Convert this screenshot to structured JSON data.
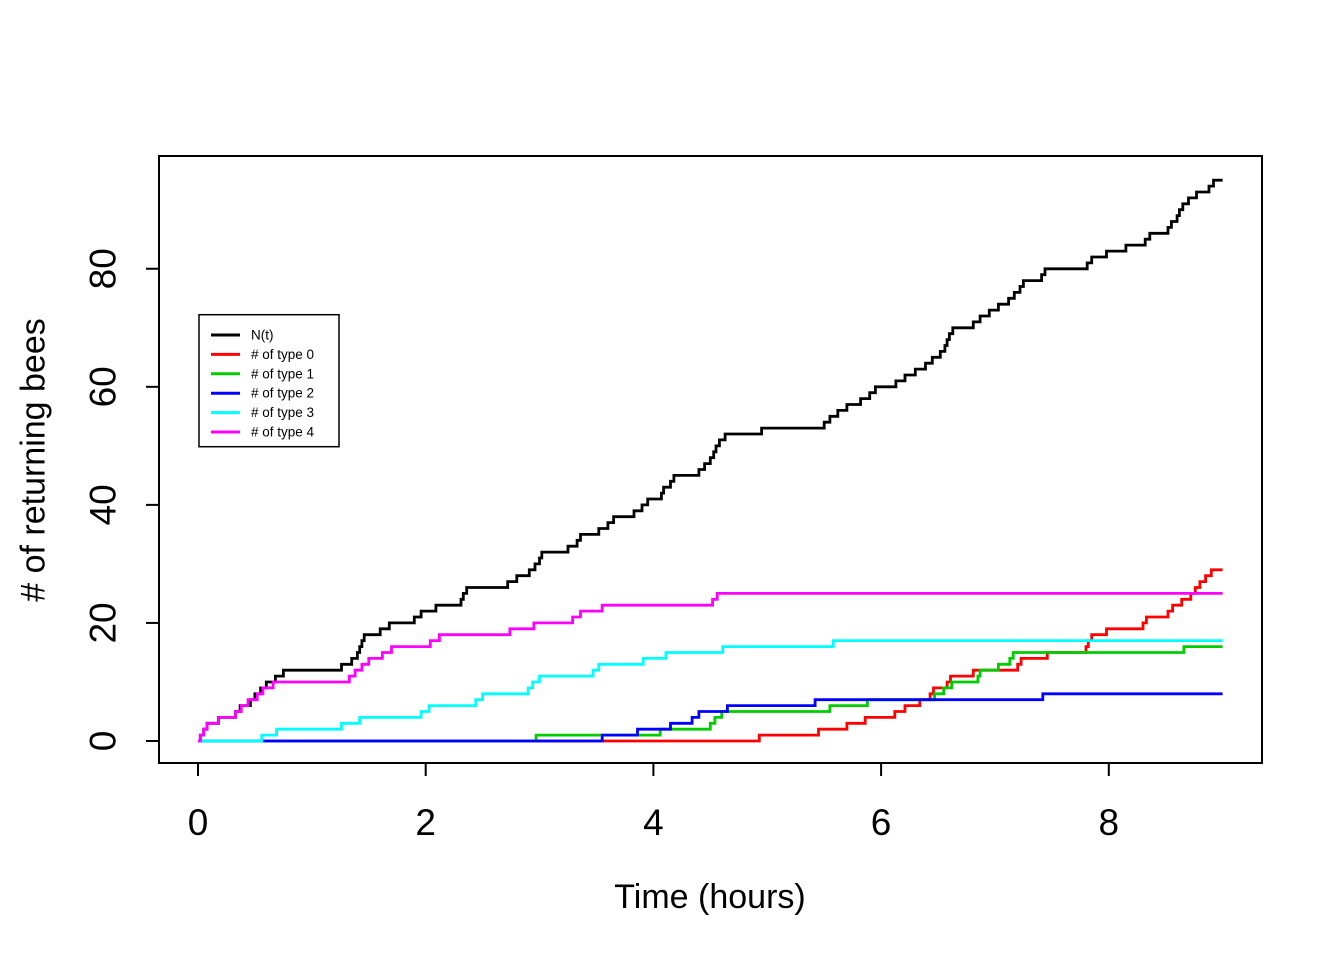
{
  "figure": {
    "background_color": "#ffffff",
    "plot_box_color": "#000000"
  },
  "chart_data": {
    "type": "line",
    "subtype": "step",
    "title": "",
    "xlabel": "Time (hours)",
    "ylabel": "# of returning bees",
    "x_ticks": [
      0,
      2,
      4,
      6,
      8
    ],
    "y_ticks": [
      0,
      20,
      40,
      60,
      80
    ],
    "xlim": [
      -0.34,
      9.34
    ],
    "ylim": [
      -3.7,
      99.1
    ],
    "x_end": 9,
    "grid": false,
    "legend_position": "upper-left-inside",
    "series": [
      {
        "name": "N(t)",
        "color": "#000000",
        "values": [
          [
            0,
            0
          ],
          [
            0.02,
            1
          ],
          [
            0.05,
            2
          ],
          [
            0.08,
            3
          ],
          [
            0.18,
            4
          ],
          [
            0.33,
            5
          ],
          [
            0.37,
            6
          ],
          [
            0.46,
            7
          ],
          [
            0.5,
            8
          ],
          [
            0.55,
            9
          ],
          [
            0.6,
            10
          ],
          [
            0.68,
            11
          ],
          [
            0.75,
            12
          ],
          [
            1.26,
            13
          ],
          [
            1.35,
            14
          ],
          [
            1.4,
            15
          ],
          [
            1.42,
            16
          ],
          [
            1.44,
            17
          ],
          [
            1.46,
            18
          ],
          [
            1.6,
            19
          ],
          [
            1.68,
            20
          ],
          [
            1.9,
            21
          ],
          [
            1.96,
            22
          ],
          [
            2.09,
            23
          ],
          [
            2.31,
            24
          ],
          [
            2.33,
            25
          ],
          [
            2.36,
            26
          ],
          [
            2.72,
            27
          ],
          [
            2.8,
            28
          ],
          [
            2.91,
            29
          ],
          [
            2.96,
            30
          ],
          [
            3.0,
            31
          ],
          [
            3.02,
            32
          ],
          [
            3.25,
            33
          ],
          [
            3.33,
            34
          ],
          [
            3.36,
            35
          ],
          [
            3.52,
            36
          ],
          [
            3.6,
            37
          ],
          [
            3.65,
            38
          ],
          [
            3.83,
            39
          ],
          [
            3.9,
            40
          ],
          [
            3.95,
            41
          ],
          [
            4.07,
            42
          ],
          [
            4.09,
            43
          ],
          [
            4.15,
            44
          ],
          [
            4.18,
            45
          ],
          [
            4.4,
            46
          ],
          [
            4.45,
            47
          ],
          [
            4.5,
            48
          ],
          [
            4.53,
            49
          ],
          [
            4.55,
            50
          ],
          [
            4.58,
            51
          ],
          [
            4.63,
            52
          ],
          [
            4.95,
            53
          ],
          [
            5.5,
            54
          ],
          [
            5.55,
            55
          ],
          [
            5.62,
            56
          ],
          [
            5.7,
            57
          ],
          [
            5.82,
            58
          ],
          [
            5.9,
            59
          ],
          [
            5.95,
            60
          ],
          [
            6.13,
            61
          ],
          [
            6.21,
            62
          ],
          [
            6.3,
            63
          ],
          [
            6.39,
            64
          ],
          [
            6.45,
            65
          ],
          [
            6.52,
            66
          ],
          [
            6.56,
            67
          ],
          [
            6.58,
            68
          ],
          [
            6.6,
            69
          ],
          [
            6.63,
            70
          ],
          [
            6.81,
            71
          ],
          [
            6.87,
            72
          ],
          [
            6.95,
            73
          ],
          [
            7.03,
            74
          ],
          [
            7.12,
            75
          ],
          [
            7.17,
            76
          ],
          [
            7.22,
            77
          ],
          [
            7.25,
            78
          ],
          [
            7.41,
            79
          ],
          [
            7.44,
            80
          ],
          [
            7.81,
            81
          ],
          [
            7.85,
            82
          ],
          [
            7.98,
            83
          ],
          [
            8.15,
            84
          ],
          [
            8.32,
            85
          ],
          [
            8.36,
            86
          ],
          [
            8.52,
            87
          ],
          [
            8.55,
            88
          ],
          [
            8.6,
            89
          ],
          [
            8.62,
            90
          ],
          [
            8.65,
            91
          ],
          [
            8.7,
            92
          ],
          [
            8.77,
            93
          ],
          [
            8.88,
            94
          ],
          [
            8.92,
            95
          ]
        ]
      },
      {
        "name": "# of type 0",
        "color": "#FF0000",
        "values": [
          [
            0,
            0
          ],
          [
            4.93,
            1
          ],
          [
            5.45,
            2
          ],
          [
            5.7,
            3
          ],
          [
            5.86,
            4
          ],
          [
            6.12,
            5
          ],
          [
            6.21,
            6
          ],
          [
            6.34,
            7
          ],
          [
            6.43,
            8
          ],
          [
            6.46,
            9
          ],
          [
            6.58,
            10
          ],
          [
            6.61,
            11
          ],
          [
            6.81,
            12
          ],
          [
            7.2,
            13
          ],
          [
            7.23,
            14
          ],
          [
            7.46,
            15
          ],
          [
            7.8,
            16
          ],
          [
            7.82,
            17
          ],
          [
            7.85,
            18
          ],
          [
            7.98,
            19
          ],
          [
            8.3,
            20
          ],
          [
            8.33,
            21
          ],
          [
            8.52,
            22
          ],
          [
            8.56,
            23
          ],
          [
            8.64,
            24
          ],
          [
            8.72,
            25
          ],
          [
            8.76,
            26
          ],
          [
            8.8,
            27
          ],
          [
            8.85,
            28
          ],
          [
            8.9,
            29
          ]
        ]
      },
      {
        "name": "# of type 1",
        "color": "#00CD00",
        "values": [
          [
            0,
            0
          ],
          [
            2.97,
            1
          ],
          [
            4.06,
            2
          ],
          [
            4.5,
            3
          ],
          [
            4.54,
            4
          ],
          [
            4.6,
            5
          ],
          [
            5.55,
            6
          ],
          [
            5.88,
            7
          ],
          [
            6.47,
            8
          ],
          [
            6.55,
            9
          ],
          [
            6.62,
            10
          ],
          [
            6.85,
            11
          ],
          [
            6.87,
            12
          ],
          [
            7.03,
            13
          ],
          [
            7.13,
            14
          ],
          [
            7.16,
            15
          ],
          [
            8.66,
            16
          ]
        ]
      },
      {
        "name": "# of type 2",
        "color": "#0000FF",
        "values": [
          [
            0,
            0
          ],
          [
            3.55,
            1
          ],
          [
            3.86,
            2
          ],
          [
            4.15,
            3
          ],
          [
            4.34,
            4
          ],
          [
            4.4,
            5
          ],
          [
            4.65,
            6
          ],
          [
            5.42,
            7
          ],
          [
            7.42,
            8
          ]
        ]
      },
      {
        "name": "# of type 3",
        "color": "#00FFFF",
        "values": [
          [
            0,
            0
          ],
          [
            0.56,
            1
          ],
          [
            0.69,
            2
          ],
          [
            1.26,
            3
          ],
          [
            1.42,
            4
          ],
          [
            1.96,
            5
          ],
          [
            2.03,
            6
          ],
          [
            2.44,
            7
          ],
          [
            2.5,
            8
          ],
          [
            2.9,
            9
          ],
          [
            2.94,
            10
          ],
          [
            3.0,
            11
          ],
          [
            3.47,
            12
          ],
          [
            3.52,
            13
          ],
          [
            3.91,
            14
          ],
          [
            4.11,
            15
          ],
          [
            4.61,
            16
          ],
          [
            5.58,
            17
          ]
        ]
      },
      {
        "name": "# of type 4",
        "color": "#FF00FF",
        "values": [
          [
            0,
            0
          ],
          [
            0.02,
            1
          ],
          [
            0.05,
            2
          ],
          [
            0.08,
            3
          ],
          [
            0.18,
            4
          ],
          [
            0.33,
            5
          ],
          [
            0.38,
            6
          ],
          [
            0.44,
            7
          ],
          [
            0.52,
            8
          ],
          [
            0.57,
            9
          ],
          [
            0.66,
            10
          ],
          [
            1.33,
            11
          ],
          [
            1.38,
            12
          ],
          [
            1.44,
            13
          ],
          [
            1.5,
            14
          ],
          [
            1.62,
            15
          ],
          [
            1.7,
            16
          ],
          [
            2.04,
            17
          ],
          [
            2.12,
            18
          ],
          [
            2.74,
            19
          ],
          [
            2.95,
            20
          ],
          [
            3.29,
            21
          ],
          [
            3.36,
            22
          ],
          [
            3.55,
            23
          ],
          [
            4.52,
            24
          ],
          [
            4.56,
            25
          ]
        ]
      }
    ]
  }
}
